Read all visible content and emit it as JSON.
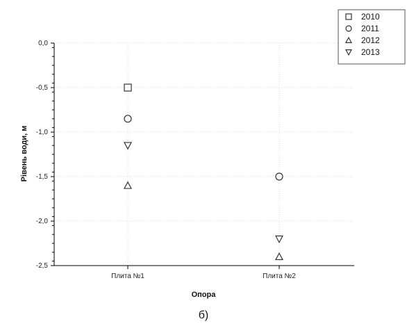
{
  "chart_data": {
    "type": "scatter",
    "categories": [
      "Плита №1",
      "Плита №2"
    ],
    "series": [
      {
        "name": "2010",
        "marker": "square",
        "values": [
          -0.5,
          null
        ]
      },
      {
        "name": "2011",
        "marker": "circle",
        "values": [
          -0.85,
          -1.5
        ]
      },
      {
        "name": "2012",
        "marker": "triangle-up",
        "values": [
          -1.6,
          -2.4
        ]
      },
      {
        "name": "2013",
        "marker": "triangle-down",
        "values": [
          -1.15,
          -2.2
        ]
      }
    ],
    "xlabel": "Опора",
    "ylabel": "Рівень води, м",
    "ylim": [
      -2.5,
      0
    ],
    "yticks": [
      0,
      -0.5,
      -1,
      -1.5,
      -2,
      -2.5
    ],
    "ytick_labels": [
      "0,0",
      "-0,5",
      "-1,0",
      "-1,5",
      "-2,0",
      "-2,5"
    ],
    "grid": true,
    "legend_position": "top-right",
    "caption": "б)",
    "colors": {
      "marker": "#333333",
      "axis": "#000000",
      "grid": "#dddddd",
      "text": "#111111"
    }
  }
}
